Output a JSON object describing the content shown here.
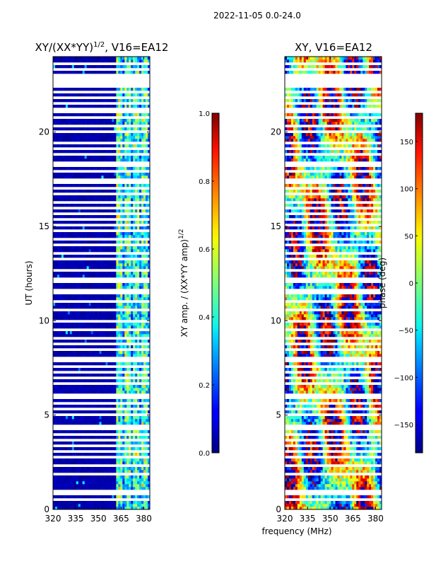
{
  "suptitle": "2022-11-05 0.0-24.0",
  "chart_data": [
    {
      "type": "heatmap",
      "title": "XY/(XX*YY)",
      "title_exp": "1/2",
      "title_suffix": ", V16=EA12",
      "xlabel": "",
      "ylabel": "UT (hours)",
      "xlim": [
        320,
        384
      ],
      "ylim": [
        0,
        24
      ],
      "xticks": [
        "320",
        "335",
        "350",
        "365",
        "380"
      ],
      "yticks": [
        "0",
        "5",
        "10",
        "15",
        "20"
      ],
      "colorbar": {
        "label": "XY amp. / (XX*YY amp)",
        "label_exp": "1/2",
        "range": [
          0.0,
          1.0
        ],
        "ticks": [
          "0.0",
          "0.2",
          "0.4",
          "0.6",
          "0.8",
          "1.0"
        ],
        "colormap": "jet"
      }
    },
    {
      "type": "heatmap",
      "title": "XY, V16=EA12",
      "xlabel": "frequency (MHz)",
      "ylabel": "",
      "xlim": [
        320,
        384
      ],
      "ylim": [
        0,
        24
      ],
      "xticks": [
        "320",
        "335",
        "350",
        "365",
        "380"
      ],
      "yticks": [
        "0",
        "5",
        "10",
        "15",
        "20"
      ],
      "colorbar": {
        "label": "phase (deg)",
        "range": [
          -180,
          180
        ],
        "ticks": [
          "−150",
          "−100",
          "−50",
          "0",
          "50",
          "100",
          "150"
        ],
        "colormap": "jet"
      }
    }
  ]
}
